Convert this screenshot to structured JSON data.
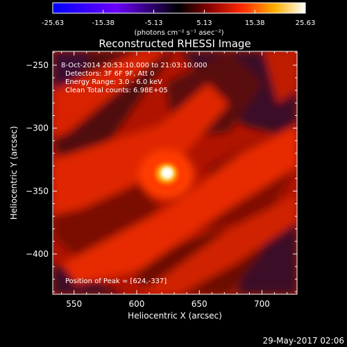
{
  "colorbar": {
    "ticks": [
      "-25.63",
      "-15.38",
      "-5.13",
      "5.13",
      "15.38",
      "25.63"
    ],
    "range": [
      -25.63,
      25.63
    ],
    "unit_label": "(photons cm⁻² s⁻¹ asec⁻²)"
  },
  "chart_data": {
    "type": "heatmap",
    "title": "Reconstructed RHESSI Image",
    "xlabel": "Heliocentric X (arcsec)",
    "ylabel": "Heliocentric Y (arcsec)",
    "xlim": [
      533,
      728
    ],
    "ylim": [
      -432,
      -239
    ],
    "xticks": [
      550,
      600,
      650,
      700
    ],
    "yticks": [
      -250,
      -300,
      -350,
      -400
    ],
    "peak": {
      "x": 624,
      "y": -337
    },
    "info_lines": [
      "8-Oct-2014 20:53:10.000 to 21:03:10.000",
      "Detectors: 3F 6F 9F, Att 0",
      "Energy Range: 3.0 - 6.0 keV",
      "Clean    Total counts: 6.98E+05"
    ],
    "peak_label": "Position of Peak = [624,-337]"
  },
  "footer": {
    "date_stamp": "29-May-2017 02:06"
  }
}
